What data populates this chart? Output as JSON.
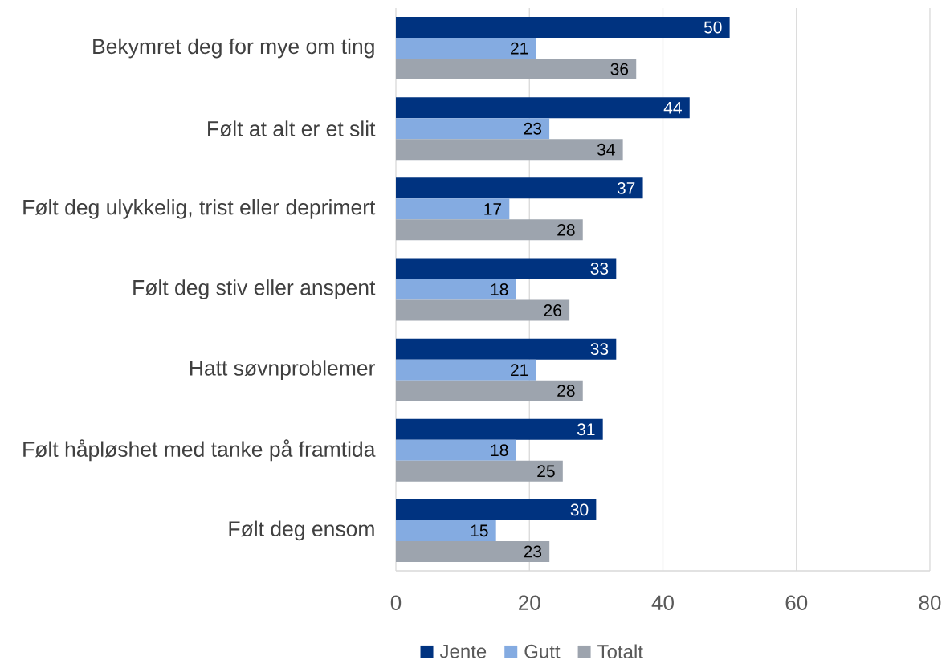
{
  "chart_data": {
    "type": "bar",
    "orientation": "horizontal",
    "categories": [
      "Bekymret deg for mye om ting",
      "Følt at alt er et slit",
      "Følt deg ulykkelig, trist eller deprimert",
      "Følt deg stiv eller anspent",
      "Hatt søvnproblemer",
      "Følt håpløshet med tanke på framtida",
      "Følt deg ensom"
    ],
    "series": [
      {
        "name": "Jente",
        "color": "#003380",
        "values": [
          50,
          44,
          37,
          33,
          33,
          31,
          30
        ]
      },
      {
        "name": "Gutt",
        "color": "#84abe1",
        "values": [
          21,
          23,
          17,
          18,
          21,
          18,
          15
        ]
      },
      {
        "name": "Totalt",
        "color": "#9da4ae",
        "values": [
          36,
          34,
          28,
          26,
          28,
          25,
          23
        ]
      }
    ],
    "xlim": [
      0,
      80
    ],
    "xticks": [
      0,
      20,
      40,
      60,
      80
    ],
    "grid": "x",
    "legend": "bottom",
    "data_labels": true
  }
}
